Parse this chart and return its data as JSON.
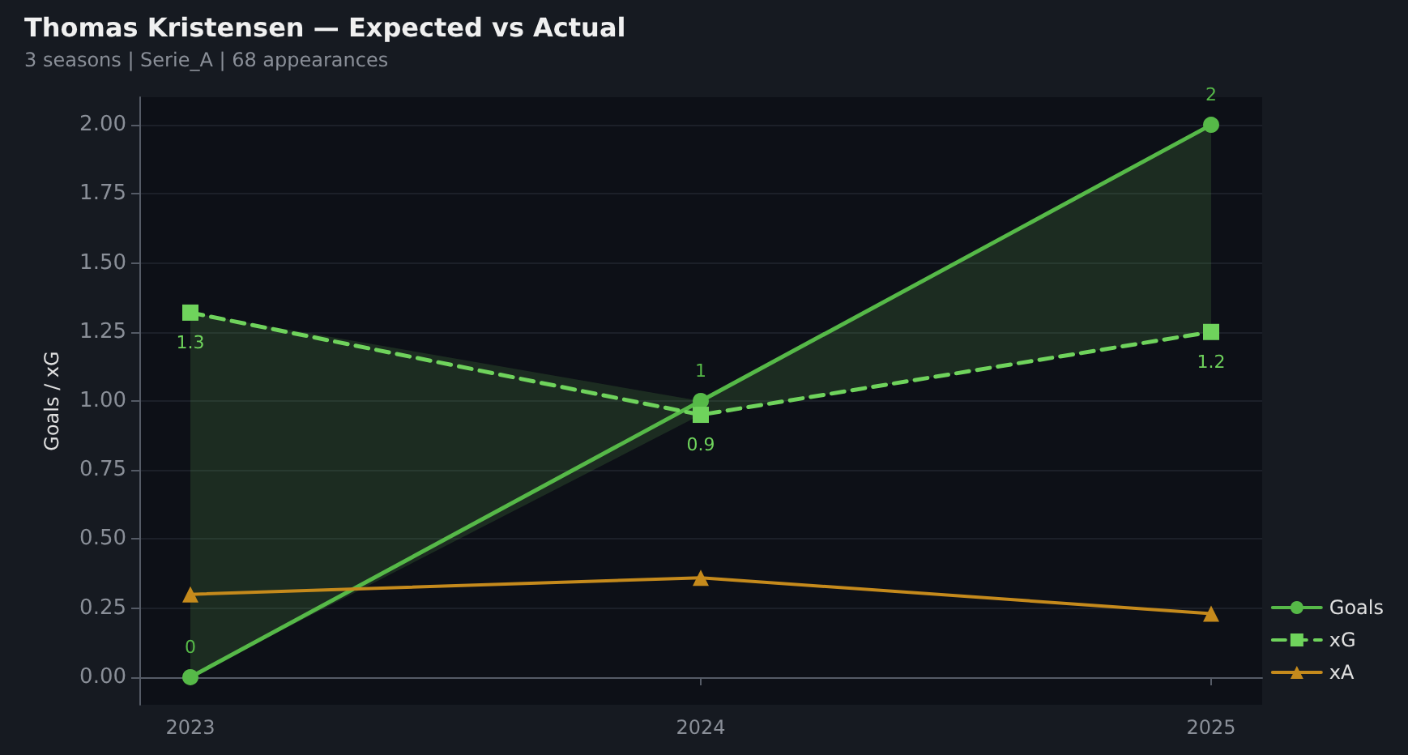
{
  "chart_data": {
    "type": "line",
    "title": "Thomas Kristensen — Expected vs Actual",
    "subtitle": "3 seasons | Serie_A | 68 appearances",
    "ylabel": "Goals / xG",
    "x": [
      2023,
      2024,
      2025
    ],
    "xlim": [
      2022.9,
      2025.1
    ],
    "xticks": [
      {
        "value": 2023,
        "label": "2023"
      },
      {
        "value": 2024,
        "label": "2024"
      },
      {
        "value": 2025,
        "label": "2025"
      }
    ],
    "ylim": [
      -0.1,
      2.1
    ],
    "yticks": [
      {
        "value": 0,
        "label": "0.00"
      },
      {
        "value": 0.25,
        "label": "0.25"
      },
      {
        "value": 0.5,
        "label": "0.50"
      },
      {
        "value": 0.75,
        "label": "0.75"
      },
      {
        "value": 1,
        "label": "1.00"
      },
      {
        "value": 1.25,
        "label": "1.25"
      },
      {
        "value": 1.5,
        "label": "1.50"
      },
      {
        "value": 1.75,
        "label": "1.75"
      },
      {
        "value": 2,
        "label": "2.00"
      }
    ],
    "grid": "y",
    "legend": "bottom right",
    "series": [
      {
        "name": "Goals",
        "color": "#56b948",
        "marker": "circle",
        "line_style": "solid",
        "values": [
          0,
          1,
          2
        ],
        "value_labels": [
          "0",
          "1",
          "2"
        ]
      },
      {
        "name": "xG",
        "color": "#6fd35c",
        "marker": "square",
        "line_style": "dashed",
        "values": [
          1.32,
          0.95,
          1.25
        ],
        "value_labels": [
          "1.3",
          "0.9",
          "1.2"
        ],
        "lower": [
          0,
          0.95,
          1.25
        ],
        "upper": [
          1.32,
          1,
          2
        ]
      },
      {
        "name": "xA",
        "color": "#c58a1c",
        "marker": "triangle",
        "line_style": "solid",
        "values": [
          0.3,
          0.36,
          0.23
        ]
      }
    ]
  }
}
